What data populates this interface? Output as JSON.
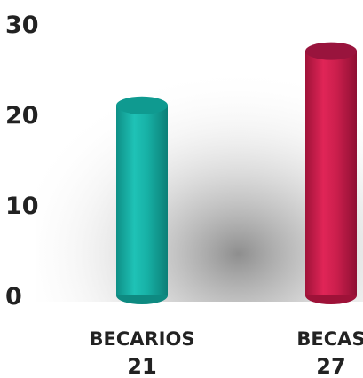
{
  "chart_data": {
    "type": "bar",
    "categories": [
      "BECARIOS",
      "BECAS"
    ],
    "values": [
      21,
      27
    ],
    "value_labels": [
      "21",
      "27"
    ],
    "title": "",
    "xlabel": "",
    "ylabel": "",
    "ylim": [
      0,
      30
    ],
    "yticks": [
      "0",
      "10",
      "20",
      "30"
    ],
    "grid": false,
    "legend": "none",
    "bar_style": "3d-cylinder",
    "colors": [
      "#17b3a7",
      "#cc1f4d"
    ]
  }
}
